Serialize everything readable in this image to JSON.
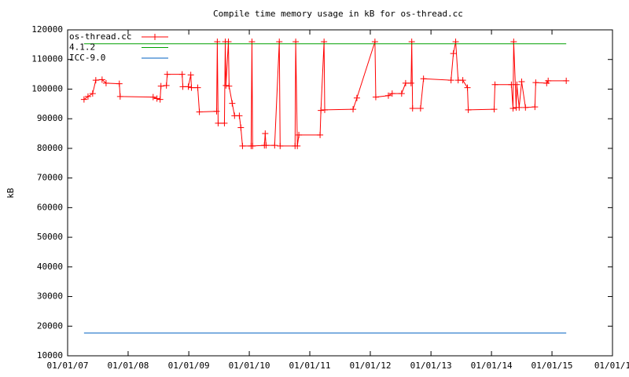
{
  "chart_data": {
    "type": "line",
    "title": "Compile time memory usage in kB for os-thread.cc",
    "y_label": "kB",
    "xlim": [
      "2007-01-01",
      "2016-01-01"
    ],
    "xticks": [
      {
        "value": "2007-01-01",
        "label": "01/01/07"
      },
      {
        "value": "2008-01-01",
        "label": "01/01/08"
      },
      {
        "value": "2009-01-01",
        "label": "01/01/09"
      },
      {
        "value": "2010-01-01",
        "label": "01/01/10"
      },
      {
        "value": "2011-01-01",
        "label": "01/01/11"
      },
      {
        "value": "2012-01-01",
        "label": "01/01/12"
      },
      {
        "value": "2013-01-01",
        "label": "01/01/13"
      },
      {
        "value": "2014-01-01",
        "label": "01/01/14"
      },
      {
        "value": "2015-01-01",
        "label": "01/01/15"
      },
      {
        "value": "2016-01-01",
        "label": "01/01/1"
      }
    ],
    "ylim": [
      10000,
      120000
    ],
    "yticks": [
      10000,
      20000,
      30000,
      40000,
      50000,
      60000,
      70000,
      80000,
      90000,
      100000,
      110000,
      120000
    ],
    "grid": false,
    "legend": "top-left",
    "series": [
      {
        "name": "os-thread.cc",
        "color": "#ff0000",
        "markers": true,
        "x": [
          "2007-04-10",
          "2007-05-04",
          "2007-06-01",
          "2007-06-20",
          "2007-07-28",
          "2007-08-21",
          "2007-11-09",
          "2007-11-14",
          "2008-05-31",
          "2008-06-23",
          "2008-07-12",
          "2008-07-17",
          "2008-08-19",
          "2008-08-24",
          "2008-11-22",
          "2008-11-26",
          "2008-12-29",
          "2009-01-13",
          "2009-01-17",
          "2009-02-24",
          "2009-03-06",
          "2009-06-18",
          "2009-06-22",
          "2009-06-27",
          "2009-08-04",
          "2009-08-09",
          "2009-08-13",
          "2009-08-28",
          "2009-09-01",
          "2009-09-20",
          "2009-10-04",
          "2009-11-02",
          "2009-11-11",
          "2009-11-21",
          "2010-01-12",
          "2010-01-17",
          "2010-01-21",
          "2010-04-02",
          "2010-04-07",
          "2010-04-12",
          "2010-06-03",
          "2010-07-01",
          "2010-07-06",
          "2010-10-04",
          "2010-10-08",
          "2010-10-18",
          "2010-10-27",
          "2011-03-04",
          "2011-03-09",
          "2011-03-28",
          "2011-04-01",
          "2011-09-19",
          "2011-10-12",
          "2012-01-29",
          "2012-02-03",
          "2012-04-19",
          "2012-05-12",
          "2012-07-08",
          "2012-08-01",
          "2012-09-03",
          "2012-09-07",
          "2012-09-12",
          "2012-10-30",
          "2012-11-17",
          "2013-05-02",
          "2013-05-16",
          "2013-05-30",
          "2013-06-14",
          "2013-07-12",
          "2013-08-09",
          "2013-08-14",
          "2014-01-17",
          "2014-01-22",
          "2014-05-01",
          "2014-05-11",
          "2014-05-15",
          "2014-05-30",
          "2014-06-03",
          "2014-06-17",
          "2014-07-02",
          "2014-07-25",
          "2014-09-20",
          "2014-09-25",
          "2014-11-30",
          "2014-12-09",
          "2015-03-28"
        ],
        "values": [
          96500,
          97500,
          98500,
          103000,
          103200,
          102000,
          101800,
          97500,
          97300,
          96800,
          96500,
          101000,
          101200,
          105000,
          105000,
          100800,
          100800,
          104800,
          100500,
          100500,
          92300,
          92500,
          116000,
          88500,
          88500,
          116000,
          101200,
          116000,
          101000,
          95200,
          91000,
          91000,
          87000,
          80800,
          80800,
          116000,
          80800,
          81000,
          85000,
          81000,
          81000,
          116000,
          80800,
          80800,
          116000,
          80800,
          84500,
          84500,
          92800,
          116000,
          93000,
          93200,
          97000,
          116000,
          97300,
          97800,
          98500,
          98500,
          102000,
          102000,
          116000,
          93500,
          93500,
          103500,
          103000,
          112000,
          116000,
          103000,
          103000,
          100500,
          93000,
          93200,
          101500,
          101500,
          93500,
          116000,
          93800,
          101500,
          93800,
          102500,
          93800,
          94000,
          102200,
          102000,
          102800,
          102800
        ]
      },
      {
        "name": "4.1.2",
        "color": "#00a000",
        "markers": false,
        "x": [
          "2007-04-10",
          "2015-03-28"
        ],
        "values": [
          115300,
          115300
        ]
      },
      {
        "name": "ICC-9.0",
        "color": "#0060c0",
        "markers": false,
        "x": [
          "2007-04-10",
          "2015-03-28"
        ],
        "values": [
          17700,
          17700
        ]
      }
    ]
  }
}
